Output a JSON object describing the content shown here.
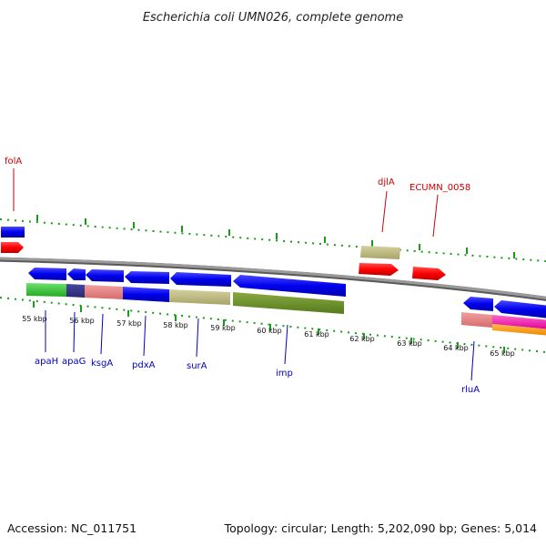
{
  "title": "Escherichia coli UMN026, complete genome",
  "footer": {
    "accession": "Accession: NC_011751",
    "summary": "Topology: circular; Length: 5,202,090 bp; Genes: 5,014"
  },
  "colors": {
    "backbone": "#8a8a8a",
    "tick": "#1a9a1a",
    "label_top": "#cc0000",
    "label_bottom": "#0000bb"
  },
  "scale_labels": [
    "55 kbp",
    "56 kbp",
    "57 kbp",
    "58 kbp",
    "59 kbp",
    "60 kbp",
    "61 kbp",
    "62 kbp",
    "63 kbp",
    "64 kbp",
    "65 kbp"
  ],
  "top_gene_labels": [
    "folA",
    "djlA",
    "ECUMN_0058"
  ],
  "bottom_gene_labels": [
    "apaH",
    "apaG",
    "ksgA",
    "pdxA",
    "surA",
    "imp",
    "rluA"
  ]
}
